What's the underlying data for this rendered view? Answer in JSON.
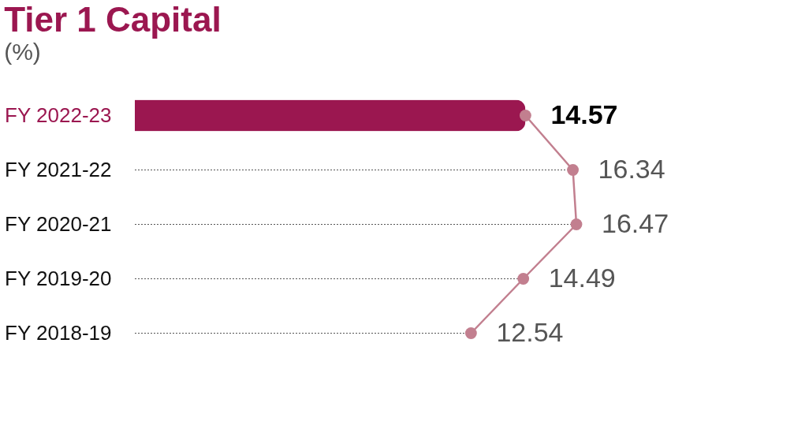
{
  "chart_data": {
    "type": "bar",
    "orientation": "horizontal",
    "title": "Tier 1 Capital",
    "subtitle": "(%)",
    "grid": "y",
    "categories": [
      "FY 2022-23",
      "FY 2021-22",
      "FY 2020-21",
      "FY 2019-20",
      "FY 2018-19"
    ],
    "series": [
      {
        "color": "#9b1750",
        "values": [
          14.57,
          null,
          null,
          null,
          null
        ]
      },
      {
        "type": "line",
        "color": "#c27f8f",
        "marker": "circle",
        "values": [
          14.57,
          16.34,
          16.47,
          14.49,
          12.54
        ],
        "value_labels": [
          "14.57",
          "16.34",
          "16.47",
          "14.49",
          "12.54"
        ]
      }
    ]
  }
}
